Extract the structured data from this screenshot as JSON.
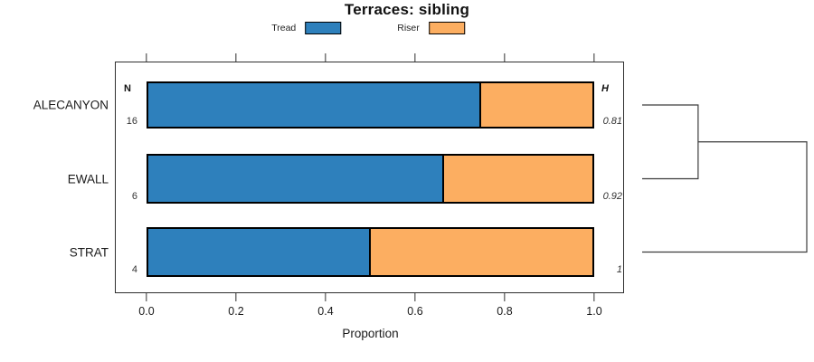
{
  "chart_data": {
    "type": "bar",
    "orientation": "horizontal-stacked",
    "title": "Terraces: sibling",
    "xlabel": "Proportion",
    "xlim": [
      0,
      1
    ],
    "xticks": [
      "0.0",
      "0.2",
      "0.4",
      "0.6",
      "0.8",
      "1.0"
    ],
    "grid": false,
    "legend": {
      "position": "top-center",
      "entries": [
        "Tread",
        "Riser"
      ]
    },
    "categories": [
      "ALECANYON",
      "EWALL",
      "STRAT"
    ],
    "series": [
      {
        "name": "Tread",
        "color": "#2E80BC",
        "values": [
          0.75,
          0.667,
          0.5
        ]
      },
      {
        "name": "Riser",
        "color": "#FCAE61",
        "values": [
          0.25,
          0.333,
          0.5
        ]
      }
    ],
    "columns": {
      "n": {
        "header": "N",
        "values": [
          "16",
          "6",
          "4"
        ]
      },
      "h": {
        "header": "H",
        "values": [
          "0.81",
          "0.92",
          "1"
        ]
      }
    },
    "dendrogram": {
      "leaves": [
        "ALECANYON",
        "EWALL",
        "STRAT"
      ],
      "merges": [
        {
          "join": [
            0,
            1
          ],
          "relative_height": 0.34
        },
        {
          "join": [
            "prev",
            2
          ],
          "relative_height": 1.0
        }
      ]
    }
  }
}
